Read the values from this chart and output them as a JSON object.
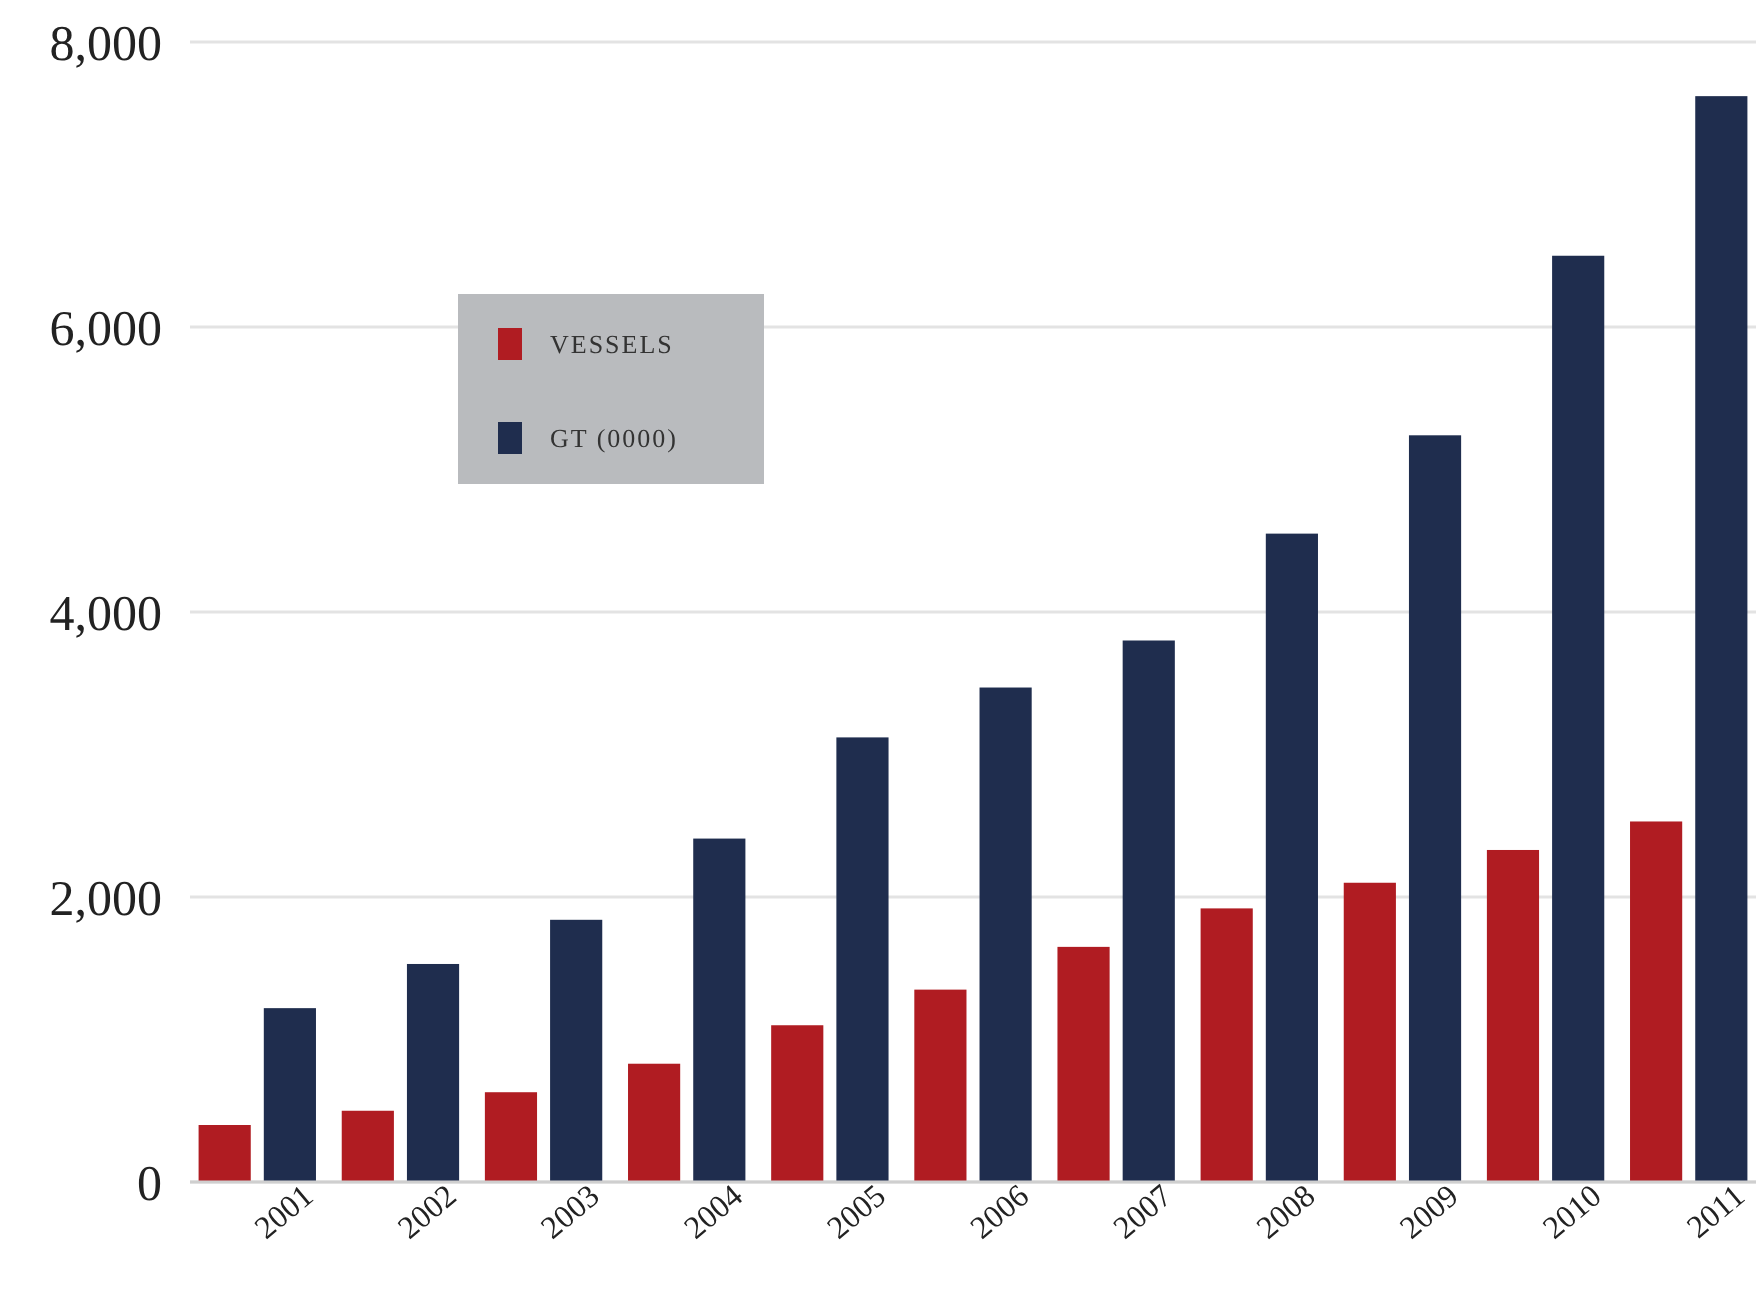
{
  "chart_data": {
    "type": "bar",
    "categories": [
      "2001",
      "2002",
      "2003",
      "2004",
      "2005",
      "2006",
      "2007",
      "2008",
      "2009",
      "2010",
      "2011"
    ],
    "series": [
      {
        "name": "VESSELS",
        "color": "#b01c22",
        "values": [
          400,
          500,
          630,
          830,
          1100,
          1350,
          1650,
          1920,
          2100,
          2330,
          2530
        ]
      },
      {
        "name": "GT (0000)",
        "color": "#1f2d4e",
        "values": [
          1220,
          1530,
          1840,
          2410,
          3120,
          3470,
          3800,
          4550,
          5240,
          6500,
          7620
        ]
      }
    ],
    "ylim": [
      0,
      8000
    ],
    "yticks": [
      {
        "value": 0,
        "label": "0"
      },
      {
        "value": 2000,
        "label": "2,000"
      },
      {
        "value": 4000,
        "label": "4,000"
      },
      {
        "value": 6000,
        "label": "6,000"
      },
      {
        "value": 8000,
        "label": "8,000"
      }
    ],
    "grid": "y",
    "legend": "top left"
  }
}
